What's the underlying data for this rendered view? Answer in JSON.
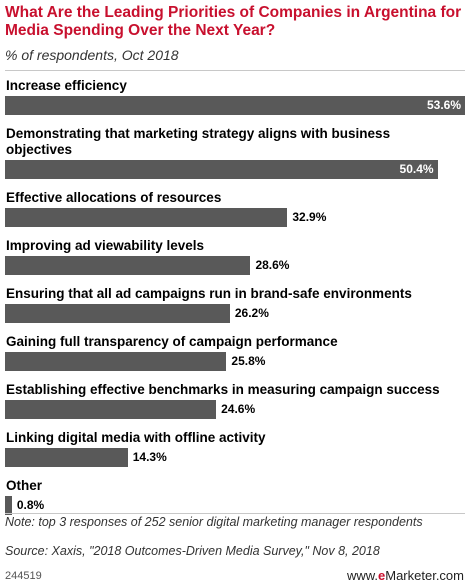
{
  "header": {
    "title": "What Are the Leading Priorities of Companies in Argentina for Media Spending Over the Next Year?",
    "subtitle": "% of respondents, Oct 2018"
  },
  "chart_data": {
    "type": "bar",
    "orientation": "horizontal",
    "title": "What Are the Leading Priorities of Companies in Argentina for Media Spending Over the Next Year?",
    "subtitle": "% of respondents, Oct 2018",
    "categories": [
      "Increase efficiency",
      "Demonstrating that marketing strategy aligns with business objectives",
      "Effective allocations of resources",
      "Improving ad viewability levels",
      "Ensuring that all ad campaigns run in brand-safe environments",
      "Gaining full transparency of campaign performance",
      "Establishing effective benchmarks in measuring campaign success",
      "Linking digital media with offline activity",
      "Other"
    ],
    "values": [
      53.6,
      50.4,
      32.9,
      28.6,
      26.2,
      25.8,
      24.6,
      14.3,
      0.8
    ],
    "value_labels": [
      "53.6%",
      "50.4%",
      "32.9%",
      "28.6%",
      "26.2%",
      "25.8%",
      "24.6%",
      "14.3%",
      "0.8%"
    ],
    "bar_color": "#595959",
    "xlim": [
      0,
      53.6
    ],
    "grid": false,
    "legend": "none"
  },
  "footer": {
    "note": "Note: top 3 responses of 252 senior digital marketing manager respondents",
    "source": "Source: Xaxis, \"2018 Outcomes-Driven Media Survey,\" Nov 8, 2018",
    "chart_id": "244519",
    "logo_prefix": "www.",
    "logo_brand": "e",
    "logo_suffix": "Marketer.com"
  },
  "colors": {
    "title": "#c8102e",
    "bar": "#595959",
    "brand": "#c8102e"
  }
}
